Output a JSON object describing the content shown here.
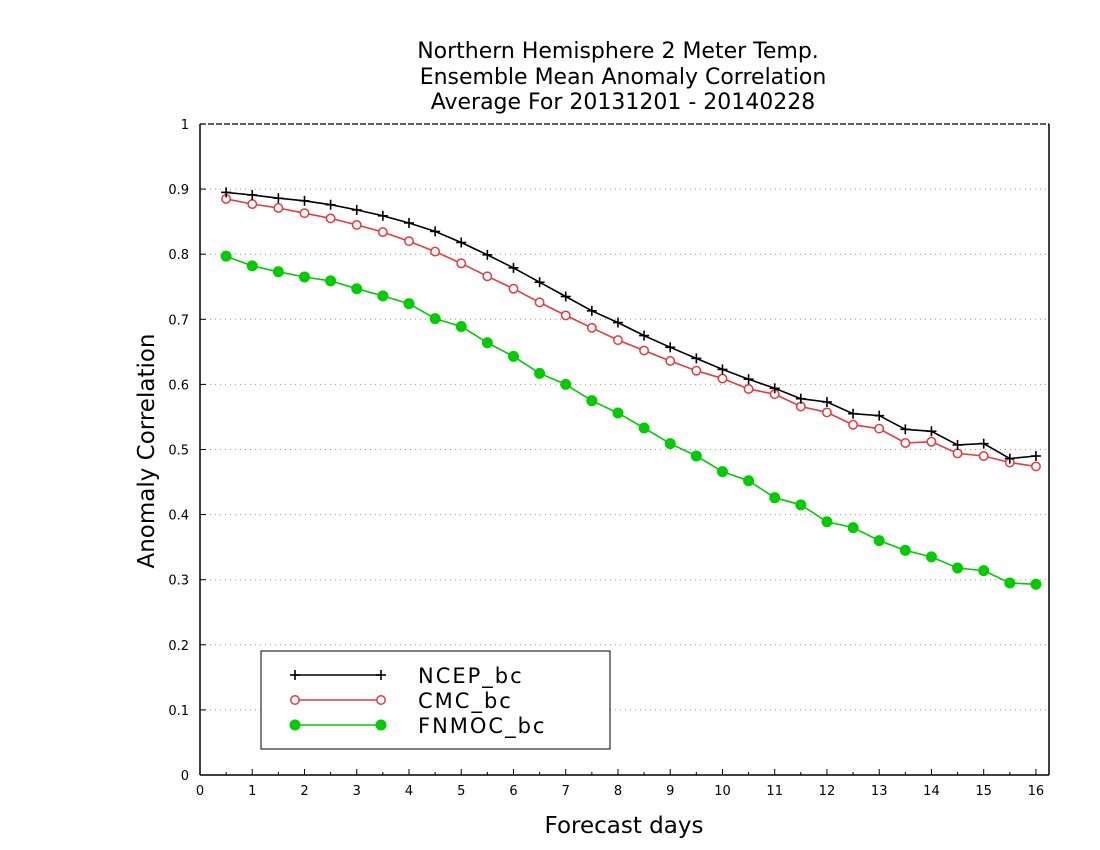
{
  "chart_data": {
    "type": "line",
    "title_lines": [
      "Northern Hemisphere 2 Meter Temp.",
      "Ensemble Mean Anomaly Correlation",
      "Average For 20131201 - 20140228"
    ],
    "xlabel": "Forecast days",
    "ylabel": "Anomaly Correlation",
    "xlim": [
      0,
      16.25
    ],
    "ylim": [
      0,
      1
    ],
    "x_ticks": [
      "0",
      "1",
      "2",
      "3",
      "4",
      "5",
      "6",
      "7",
      "8",
      "9",
      "10",
      "11",
      "12",
      "13",
      "14",
      "15",
      "16"
    ],
    "y_ticks": [
      "0",
      "0.1",
      "0.2",
      "0.3",
      "0.4",
      "0.5",
      "0.6",
      "0.7",
      "0.8",
      "0.9",
      "1"
    ],
    "grid": "horizontal dotted",
    "legend_position": "bottom-left",
    "x": [
      0.5,
      1,
      1.5,
      2,
      2.5,
      3,
      3.5,
      4,
      4.5,
      5,
      5.5,
      6,
      6.5,
      7,
      7.5,
      8,
      8.5,
      9,
      9.5,
      10,
      10.5,
      11,
      11.5,
      12,
      12.5,
      13,
      13.5,
      14,
      14.5,
      15,
      15.5,
      16
    ],
    "series": [
      {
        "name": "NCEP_bc",
        "color": "#000000",
        "marker": "plus",
        "values": [
          0.895,
          0.891,
          0.886,
          0.882,
          0.876,
          0.868,
          0.859,
          0.848,
          0.835,
          0.818,
          0.799,
          0.779,
          0.757,
          0.735,
          0.713,
          0.695,
          0.675,
          0.657,
          0.64,
          0.623,
          0.608,
          0.594,
          0.578,
          0.573,
          0.555,
          0.552,
          0.531,
          0.528,
          0.507,
          0.509,
          0.486,
          0.49
        ]
      },
      {
        "name": "CMC_bc",
        "color": "#e8393c",
        "marker": "open-circle",
        "values": [
          0.885,
          0.877,
          0.871,
          0.863,
          0.855,
          0.845,
          0.834,
          0.82,
          0.804,
          0.786,
          0.766,
          0.747,
          0.726,
          0.706,
          0.687,
          0.668,
          0.652,
          0.636,
          0.621,
          0.609,
          0.593,
          0.585,
          0.566,
          0.557,
          0.538,
          0.532,
          0.51,
          0.512,
          0.494,
          0.49,
          0.48,
          0.474
        ]
      },
      {
        "name": "FNMOC_bc",
        "color": "#00cc00",
        "marker": "filled-circle",
        "values": [
          0.797,
          0.782,
          0.773,
          0.765,
          0.759,
          0.747,
          0.736,
          0.724,
          0.701,
          0.689,
          0.664,
          0.643,
          0.617,
          0.6,
          0.575,
          0.556,
          0.533,
          0.509,
          0.49,
          0.466,
          0.452,
          0.426,
          0.415,
          0.389,
          0.38,
          0.36,
          0.345,
          0.335,
          0.318,
          0.314,
          0.295,
          0.293
        ]
      }
    ]
  }
}
